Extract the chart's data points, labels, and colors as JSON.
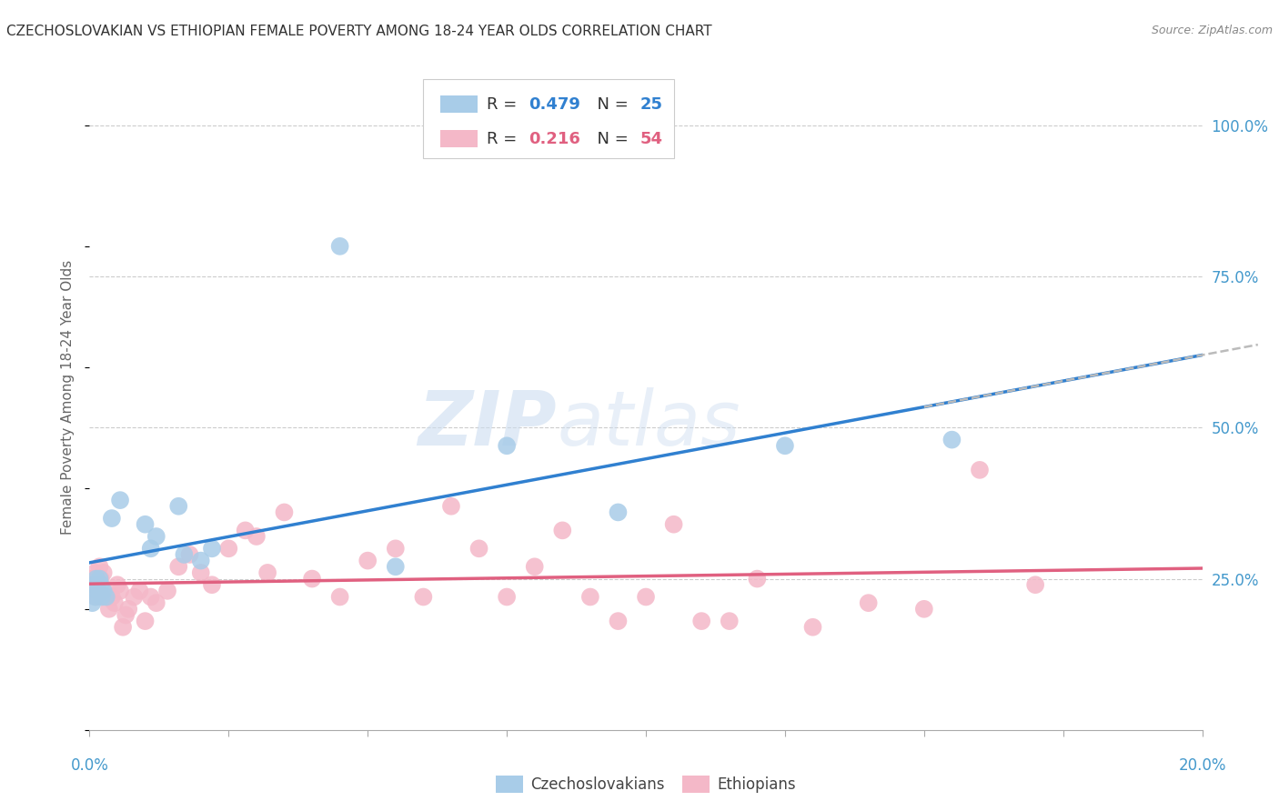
{
  "title": "CZECHOSLOVAKIAN VS ETHIOPIAN FEMALE POVERTY AMONG 18-24 YEAR OLDS CORRELATION CHART",
  "source": "Source: ZipAtlas.com",
  "ylabel": "Female Poverty Among 18-24 Year Olds",
  "yticks_right": [
    "25.0%",
    "50.0%",
    "75.0%",
    "100.0%"
  ],
  "yticks_right_vals": [
    25.0,
    50.0,
    75.0,
    100.0
  ],
  "xmin": 0.0,
  "xmax": 20.0,
  "ymin": 0.0,
  "ymax": 110.0,
  "czech_color": "#a8cce8",
  "eth_color": "#f4b8c8",
  "czech_line_color": "#3080d0",
  "eth_line_color": "#e06080",
  "dash_line_color": "#bbbbbb",
  "background_color": "#ffffff",
  "grid_color": "#cccccc",
  "title_color": "#333333",
  "axis_label_color": "#4499cc",
  "czech_x": [
    0.05,
    0.08,
    0.1,
    0.12,
    0.15,
    0.18,
    0.2,
    0.22,
    0.25,
    0.3,
    0.4,
    0.55,
    1.0,
    1.1,
    1.2,
    1.6,
    1.7,
    2.0,
    2.2,
    4.5,
    5.5,
    7.5,
    9.5,
    12.5,
    15.5
  ],
  "czech_y": [
    21,
    24,
    22,
    25,
    23,
    25,
    24,
    22,
    23,
    22,
    35,
    38,
    34,
    30,
    32,
    37,
    29,
    28,
    30,
    80,
    27,
    47,
    36,
    47,
    48
  ],
  "eth_x": [
    0.05,
    0.08,
    0.1,
    0.12,
    0.15,
    0.18,
    0.2,
    0.25,
    0.3,
    0.35,
    0.4,
    0.45,
    0.5,
    0.55,
    0.6,
    0.65,
    0.7,
    0.8,
    0.9,
    1.0,
    1.1,
    1.2,
    1.4,
    1.6,
    1.8,
    2.0,
    2.2,
    2.5,
    2.8,
    3.0,
    3.2,
    3.5,
    4.0,
    4.5,
    5.0,
    5.5,
    6.0,
    6.5,
    7.0,
    7.5,
    8.0,
    8.5,
    9.0,
    9.5,
    10.0,
    10.5,
    11.0,
    11.5,
    12.0,
    13.0,
    14.0,
    15.0,
    16.0,
    17.0
  ],
  "eth_y": [
    25,
    24,
    26,
    22,
    23,
    27,
    25,
    26,
    22,
    20,
    22,
    21,
    24,
    23,
    17,
    19,
    20,
    22,
    23,
    18,
    22,
    21,
    23,
    27,
    29,
    26,
    24,
    30,
    33,
    32,
    26,
    36,
    25,
    22,
    28,
    30,
    22,
    37,
    30,
    22,
    27,
    33,
    22,
    18,
    22,
    34,
    18,
    18,
    25,
    17,
    21,
    20,
    43,
    24
  ]
}
